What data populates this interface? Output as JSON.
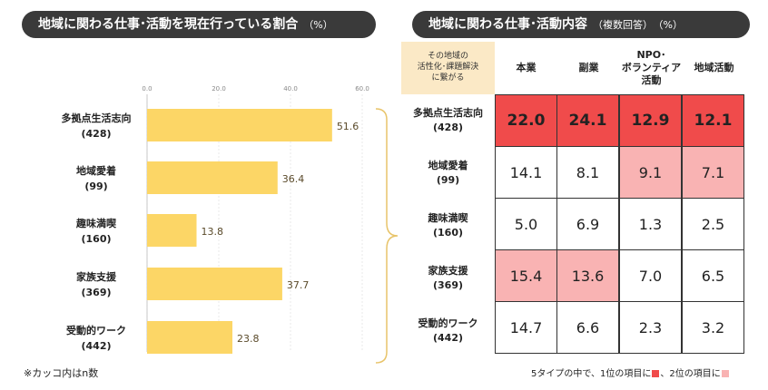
{
  "left_title": "地域に関わる仕事･活動を現在行っている割合",
  "left_unit": "（%）",
  "right_title": "地域に関わる仕事･活動内容",
  "right_subtitle": "（複数回答）",
  "right_unit": "（%）",
  "note": "※カッコ内はn数",
  "footer_text_1": "5タイプの中で、1位の項目に",
  "footer_text_2": "、2位の項目に",
  "colors": {
    "bar": "#fcd666",
    "rank1": "#f04b4b",
    "rank2": "#f9b3b3",
    "header_purpose": "#fbe9c6"
  },
  "chart_data": [
    {
      "type": "bar",
      "orientation": "horizontal",
      "categories": [
        "多拠点生活志向",
        "地域愛着",
        "趣味満喫",
        "家族支援",
        "受動的ワーク"
      ],
      "category_n": [
        "(428)",
        "(99)",
        "(160)",
        "(369)",
        "(442)"
      ],
      "values": [
        51.6,
        36.4,
        13.8,
        37.7,
        23.8
      ],
      "tick_labels": [
        "0.0",
        "20.0",
        "40.0",
        "60.0"
      ],
      "xlim": [
        0,
        60
      ],
      "grid": true
    },
    {
      "type": "table",
      "row_header": "その地域の\n活性化･課題解決\nに繋がる",
      "columns": [
        "本業",
        "副業",
        "NPO･\nボランティア\n活動",
        "地域活動"
      ],
      "rows": [
        {
          "label": "多拠点生活志向",
          "n": "(428)",
          "values": [
            "22.0",
            "24.1",
            "12.9",
            "12.1"
          ],
          "rank": [
            1,
            1,
            1,
            1
          ]
        },
        {
          "label": "地域愛着",
          "n": "(99)",
          "values": [
            "14.1",
            "8.1",
            "9.1",
            "7.1"
          ],
          "rank": [
            0,
            0,
            2,
            2
          ]
        },
        {
          "label": "趣味満喫",
          "n": "(160)",
          "values": [
            "5.0",
            "6.9",
            "1.3",
            "2.5"
          ],
          "rank": [
            0,
            0,
            0,
            0
          ]
        },
        {
          "label": "家族支援",
          "n": "(369)",
          "values": [
            "15.4",
            "13.6",
            "7.0",
            "6.5"
          ],
          "rank": [
            2,
            2,
            0,
            0
          ]
        },
        {
          "label": "受動的ワーク",
          "n": "(442)",
          "values": [
            "14.7",
            "6.6",
            "2.3",
            "3.2"
          ],
          "rank": [
            0,
            0,
            0,
            0
          ]
        }
      ]
    }
  ]
}
